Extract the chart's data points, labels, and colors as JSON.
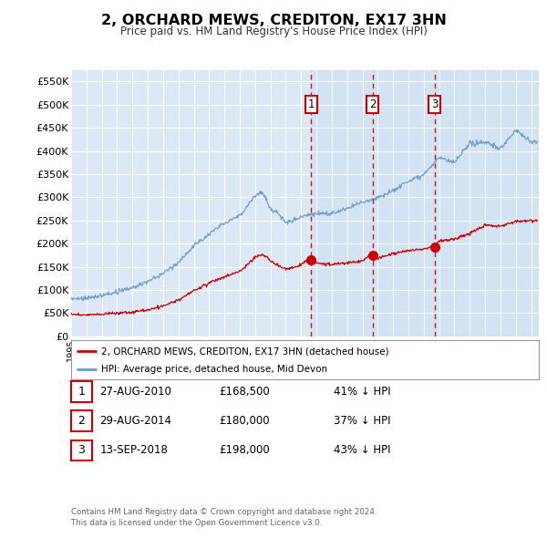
{
  "title": "2, ORCHARD MEWS, CREDITON, EX17 3HN",
  "subtitle": "Price paid vs. HM Land Registry's House Price Index (HPI)",
  "ylim": [
    0,
    575000
  ],
  "yticks": [
    0,
    50000,
    100000,
    150000,
    200000,
    250000,
    300000,
    350000,
    400000,
    450000,
    500000,
    550000
  ],
  "ytick_labels": [
    "£0",
    "£50K",
    "£100K",
    "£150K",
    "£200K",
    "£250K",
    "£300K",
    "£350K",
    "£400K",
    "£450K",
    "£500K",
    "£550K"
  ],
  "xlim_start": 1995.0,
  "xlim_end": 2025.5,
  "bg_color": "#dce8f5",
  "grid_color": "#ffffff",
  "red_line_color": "#cc0000",
  "blue_line_color": "#6699cc",
  "transaction_line_color": "#cc0000",
  "transactions": [
    {
      "date": "27-AUG-2010",
      "year": 2010.65,
      "price": 168500,
      "label": "1"
    },
    {
      "date": "29-AUG-2014",
      "year": 2014.65,
      "price": 180000,
      "label": "2"
    },
    {
      "date": "13-SEP-2018",
      "year": 2018.7,
      "price": 198000,
      "label": "3"
    }
  ],
  "legend_entry1": "2, ORCHARD MEWS, CREDITON, EX17 3HN (detached house)",
  "legend_entry2": "HPI: Average price, detached house, Mid Devon",
  "footer1": "Contains HM Land Registry data © Crown copyright and database right 2024.",
  "footer2": "This data is licensed under the Open Government Licence v3.0.",
  "table_rows": [
    {
      "num": "1",
      "date": "27-AUG-2010",
      "price": "£168,500",
      "pct": "41% ↓ HPI"
    },
    {
      "num": "2",
      "date": "29-AUG-2014",
      "price": "£180,000",
      "pct": "37% ↓ HPI"
    },
    {
      "num": "3",
      "date": "13-SEP-2018",
      "price": "£198,000",
      "pct": "43% ↓ HPI"
    }
  ],
  "blue_key_years": [
    1995,
    1996,
    1997,
    1998,
    1999,
    2000,
    2001,
    2002,
    2003,
    2004,
    2005,
    2006,
    2007,
    2007.5,
    2008,
    2008.5,
    2009,
    2009.5,
    2010,
    2011,
    2012,
    2013,
    2014,
    2015,
    2016,
    2017,
    2018,
    2019,
    2020,
    2021,
    2022,
    2023,
    2024,
    2025
  ],
  "blue_key_vals": [
    80000,
    82000,
    88000,
    95000,
    105000,
    118000,
    135000,
    160000,
    195000,
    220000,
    245000,
    260000,
    305000,
    310000,
    275000,
    265000,
    245000,
    250000,
    260000,
    265000,
    265000,
    275000,
    290000,
    300000,
    315000,
    335000,
    350000,
    385000,
    375000,
    415000,
    420000,
    405000,
    445000,
    420000
  ],
  "red_key_years": [
    1995,
    1996,
    1997,
    1998,
    1999,
    2000,
    2001,
    2002,
    2003,
    2004,
    2005,
    2006,
    2007,
    2007.5,
    2008,
    2009,
    2009.5,
    2010,
    2010.5,
    2011,
    2012,
    2013,
    2014,
    2014.5,
    2015,
    2016,
    2017,
    2018,
    2018.7,
    2019,
    2020,
    2021,
    2022,
    2023,
    2024,
    2025
  ],
  "red_key_vals": [
    47000,
    46000,
    48000,
    50000,
    52000,
    57000,
    65000,
    78000,
    98000,
    115000,
    128000,
    140000,
    170000,
    178000,
    162000,
    145000,
    148000,
    155000,
    165000,
    158000,
    155000,
    158000,
    163000,
    175000,
    168000,
    178000,
    185000,
    188000,
    195000,
    205000,
    210000,
    222000,
    240000,
    238000,
    248000,
    250000
  ]
}
